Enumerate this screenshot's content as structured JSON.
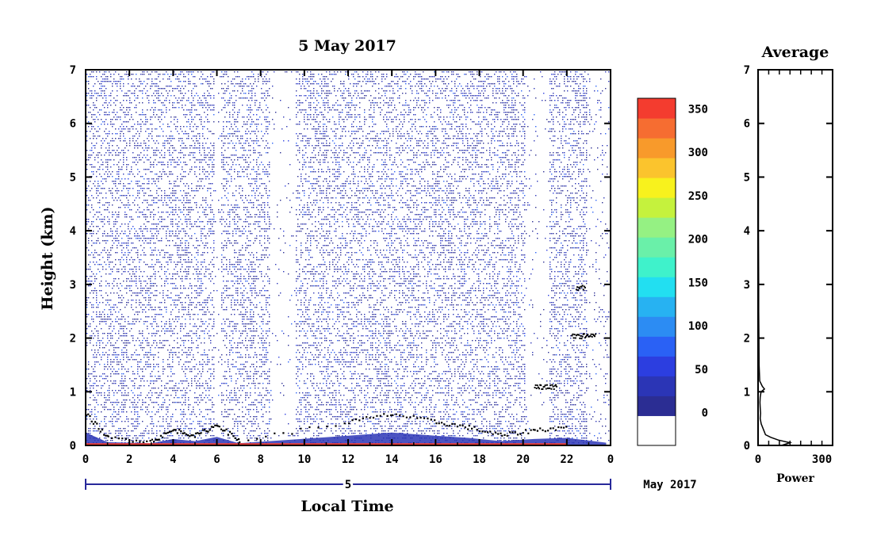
{
  "chart_data": [
    {
      "type": "heatmap",
      "title": "5 May 2017",
      "xlabel": "Local Time",
      "ylabel": "Height (km)",
      "x_ticks": [
        "0",
        "2",
        "4",
        "6",
        "8",
        "10",
        "12",
        "14",
        "16",
        "18",
        "20",
        "22",
        "0"
      ],
      "xlim": [
        0,
        24
      ],
      "y_ticks": [
        "0",
        "1",
        "2",
        "3",
        "4",
        "5",
        "6",
        "7"
      ],
      "ylim": [
        0,
        7
      ],
      "date_bar": {
        "day": "5",
        "month_label": "May 2017"
      },
      "colorbar": {
        "ticks": [
          "0",
          "50",
          "100",
          "150",
          "200",
          "250",
          "300",
          "350"
        ],
        "range": [
          -25,
          375
        ],
        "colors": [
          "#ffffff",
          "#2b2d93",
          "#2b35b6",
          "#2c3ee0",
          "#2a61f5",
          "#2c8cf3",
          "#27b2f2",
          "#22dff1",
          "#3ff2cb",
          "#6af0a9",
          "#95f183",
          "#c5f23d",
          "#f8f21d",
          "#fbc42d",
          "#f89a2b",
          "#f66d31",
          "#f43c2f"
        ]
      },
      "grid": false,
      "legend": "colorbar at right",
      "description_values": {
        "surface_layer_top_km_by_hour": [
          [
            0,
            0.6
          ],
          [
            1,
            0.15
          ],
          [
            3,
            0.1
          ],
          [
            4,
            0.3
          ],
          [
            5,
            0.2
          ],
          [
            6,
            0.4
          ],
          [
            7,
            0.1
          ],
          [
            12,
            0.45
          ],
          [
            14,
            0.6
          ],
          [
            16,
            0.45
          ],
          [
            17.5,
            0.35
          ],
          [
            19,
            0.2
          ],
          [
            20.5,
            0.3
          ],
          [
            22,
            0.35
          ]
        ],
        "elevated_layers": [
          {
            "time_h": [
              22.2,
              23.3
            ],
            "height_km": 2.05
          },
          {
            "time_h": [
              22.4,
              22.8
            ],
            "height_km": 2.95
          },
          {
            "time_h": [
              20.5,
              21.5
            ],
            "height_km": 1.1
          }
        ]
      }
    },
    {
      "type": "line",
      "title": "Average",
      "xlabel": "Power",
      "x_ticks": [
        "0",
        "300"
      ],
      "xlim": [
        0,
        350
      ],
      "y_ticks": [
        "0",
        "1",
        "2",
        "3",
        "4",
        "5",
        "6",
        "7"
      ],
      "ylim": [
        0,
        7
      ],
      "profile": [
        [
          0,
          110
        ],
        [
          0.05,
          150
        ],
        [
          0.1,
          95
        ],
        [
          0.15,
          60
        ],
        [
          0.2,
          35
        ],
        [
          0.3,
          25
        ],
        [
          0.4,
          15
        ],
        [
          0.5,
          10
        ],
        [
          0.6,
          12
        ],
        [
          0.7,
          10
        ],
        [
          0.8,
          9
        ],
        [
          0.9,
          10
        ],
        [
          1.0,
          14
        ],
        [
          1.05,
          30
        ],
        [
          1.1,
          20
        ],
        [
          1.2,
          8
        ],
        [
          1.5,
          5
        ],
        [
          2.0,
          4
        ],
        [
          2.5,
          3
        ],
        [
          3.0,
          3
        ],
        [
          4.0,
          2
        ],
        [
          5.0,
          2
        ],
        [
          6.0,
          2
        ],
        [
          7.0,
          1
        ]
      ]
    }
  ]
}
